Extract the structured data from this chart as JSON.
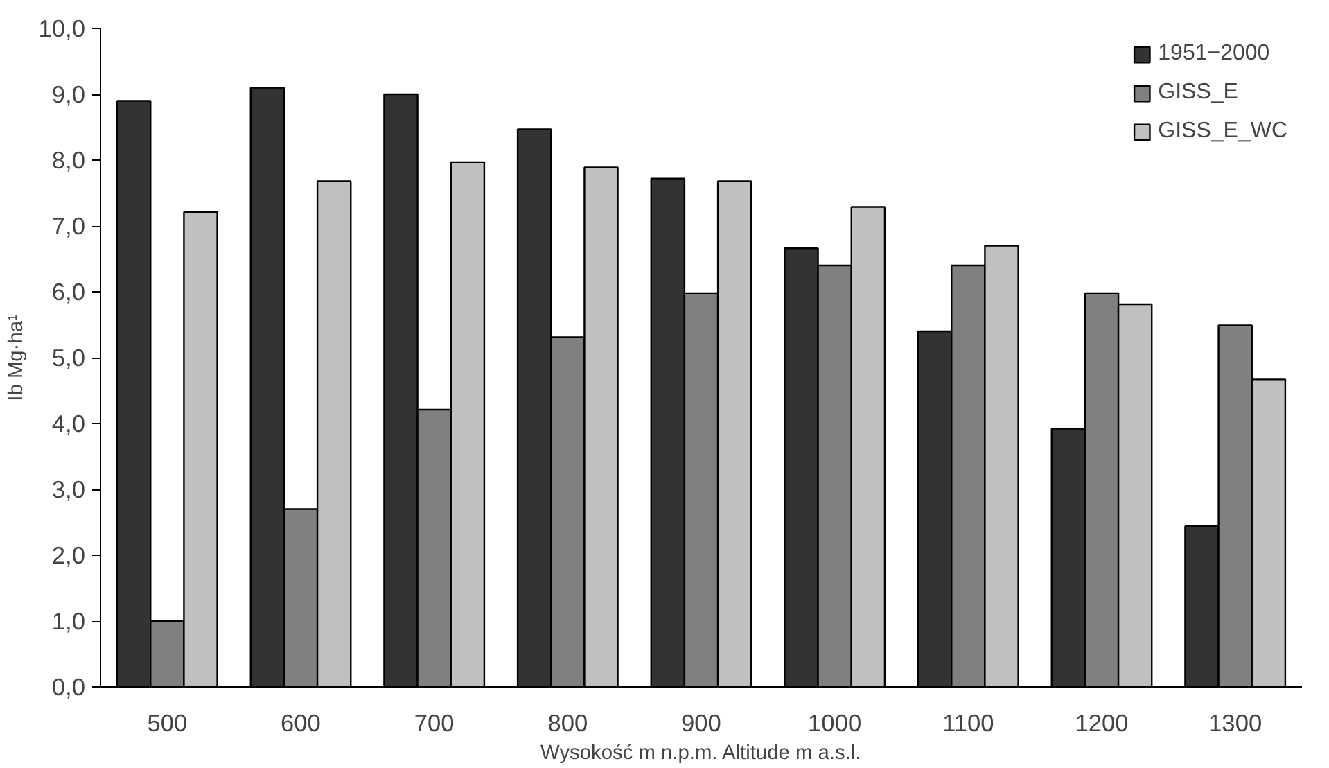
{
  "chart_data": {
    "type": "bar",
    "xlabel": "Wysokość m n.p.m. Altitude m a.s.l.",
    "ylabel": "Ib Mg·ha¹",
    "categories": [
      "500",
      "600",
      "700",
      "800",
      "900",
      "1000",
      "1100",
      "1200",
      "1300"
    ],
    "series": [
      {
        "name": "1951−2000",
        "color": "#333333",
        "values": [
          8.9,
          9.1,
          9.0,
          8.47,
          7.72,
          6.66,
          5.4,
          3.92,
          2.44
        ]
      },
      {
        "name": "GISS_E",
        "color": "#808080",
        "values": [
          1.0,
          2.7,
          4.21,
          5.31,
          5.98,
          6.4,
          6.4,
          5.98,
          5.49
        ]
      },
      {
        "name": "GISS_E_WC",
        "color": "#c0c0c0",
        "values": [
          7.21,
          7.68,
          7.97,
          7.89,
          7.68,
          7.29,
          6.7,
          5.81,
          4.67
        ]
      }
    ],
    "ylim": [
      0,
      10
    ],
    "yticks": [
      {
        "value": 0,
        "label": "0,0"
      },
      {
        "value": 1,
        "label": "1,0"
      },
      {
        "value": 2,
        "label": "2,0"
      },
      {
        "value": 3,
        "label": "3,0"
      },
      {
        "value": 4,
        "label": "4,0"
      },
      {
        "value": 5,
        "label": "5,0"
      },
      {
        "value": 6,
        "label": "6,0"
      },
      {
        "value": 7,
        "label": "7,0"
      },
      {
        "value": 8,
        "label": "8,0"
      },
      {
        "value": 9,
        "label": "9,0"
      },
      {
        "value": 10,
        "label": "10,0"
      }
    ],
    "legend": "top right",
    "grid": false
  }
}
